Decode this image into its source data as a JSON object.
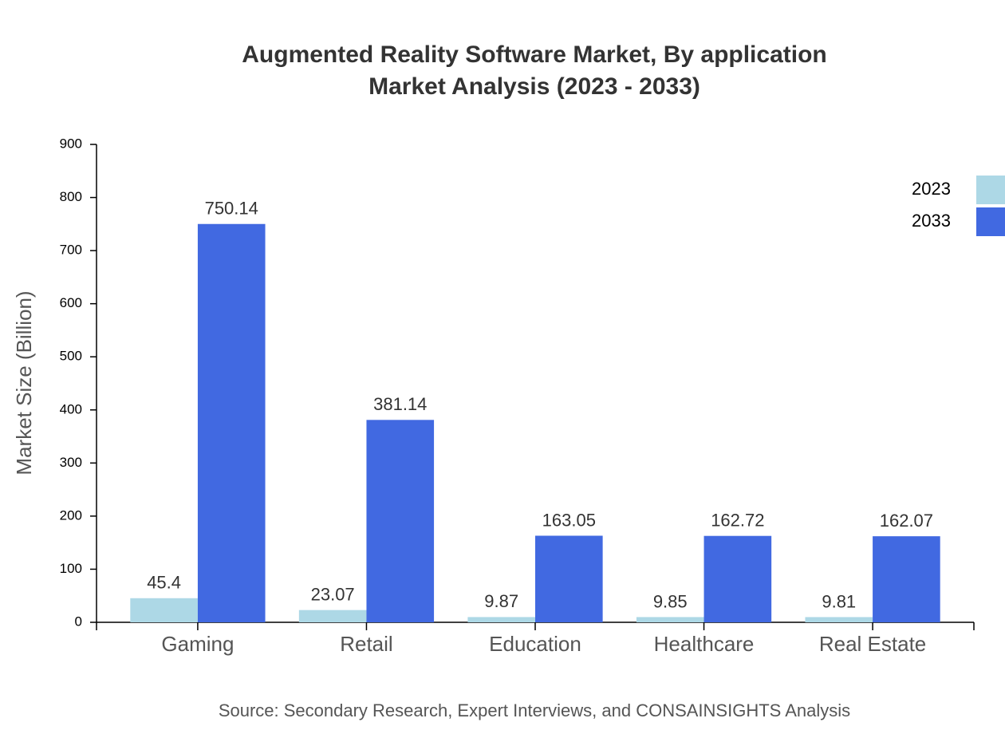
{
  "chart_data": {
    "type": "bar",
    "title": "Augmented Reality Software Market, By application",
    "subtitle": "Market Analysis (2023 - 2033)",
    "y_label": "Market Size (Billion)",
    "source": "Source: Secondary Research, Expert Interviews, and CONSAINSIGHTS Analysis",
    "categories": [
      "Gaming",
      "Retail",
      "Education",
      "Healthcare",
      "Real Estate"
    ],
    "series": [
      {
        "name": "2023",
        "color": "#add8e6",
        "values": [
          45.4,
          23.07,
          9.87,
          9.85,
          9.81
        ]
      },
      {
        "name": "2033",
        "color": "#4169e1",
        "values": [
          750.14,
          381.14,
          163.05,
          162.72,
          162.07
        ]
      }
    ],
    "ylim": [
      0,
      900
    ],
    "yticks": [
      0,
      100,
      200,
      300,
      400,
      500,
      600,
      700,
      800,
      900
    ],
    "legend": "top-right"
  }
}
